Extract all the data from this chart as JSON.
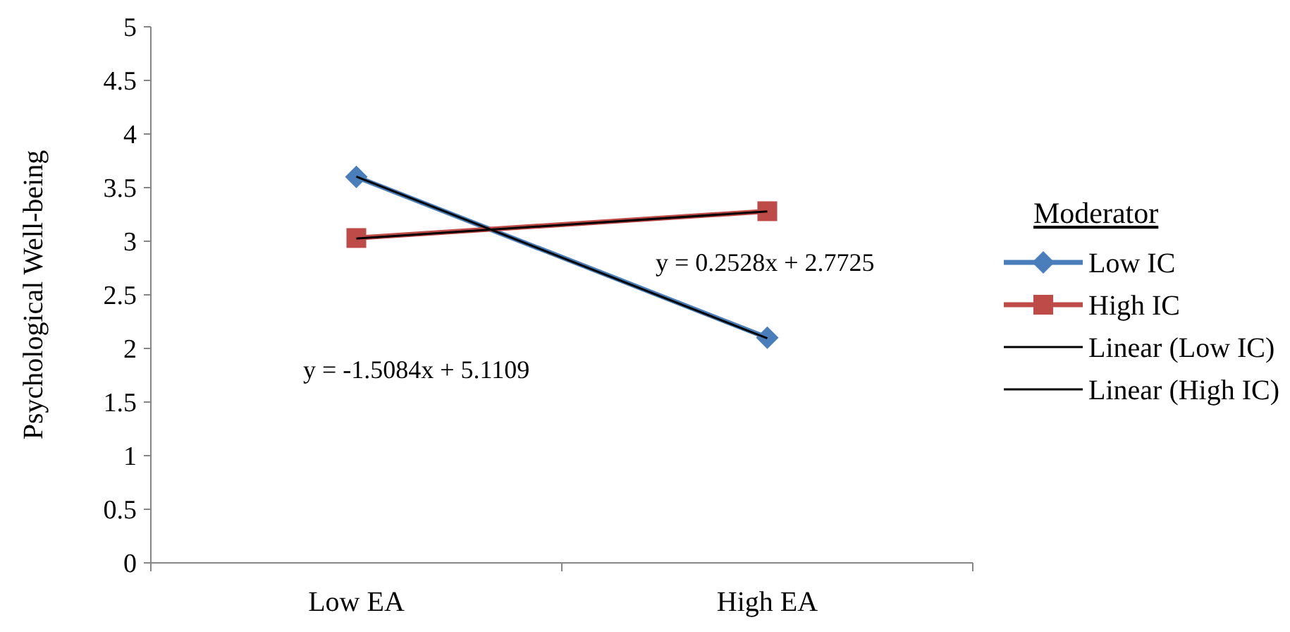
{
  "chart_data": {
    "type": "line",
    "ylabel": "Psychological Well-being",
    "legend_title": "Moderator",
    "categories": [
      "Low EA",
      "High EA"
    ],
    "ylim": [
      0,
      5
    ],
    "yticks": [
      0,
      0.5,
      1,
      1.5,
      2,
      2.5,
      3,
      3.5,
      4,
      4.5,
      5
    ],
    "grid": false,
    "legend": "right",
    "series": [
      {
        "name": "Low IC",
        "color": "#4a7ebb",
        "marker": "diamond",
        "values": [
          3.6,
          2.1
        ]
      },
      {
        "name": "High IC",
        "color": "#be4b48",
        "marker": "square",
        "values": [
          3.03,
          3.28
        ]
      },
      {
        "name": "Linear (Low IC)",
        "color": "#000000",
        "marker": "none",
        "values": [
          3.6025,
          2.0941
        ]
      },
      {
        "name": "Linear (High IC)",
        "color": "#000000",
        "marker": "none",
        "values": [
          3.0253,
          3.2781
        ]
      }
    ],
    "annotations": [
      "y = -1.5084x + 5.1109",
      "y = 0.2528x + 2.7725"
    ]
  }
}
